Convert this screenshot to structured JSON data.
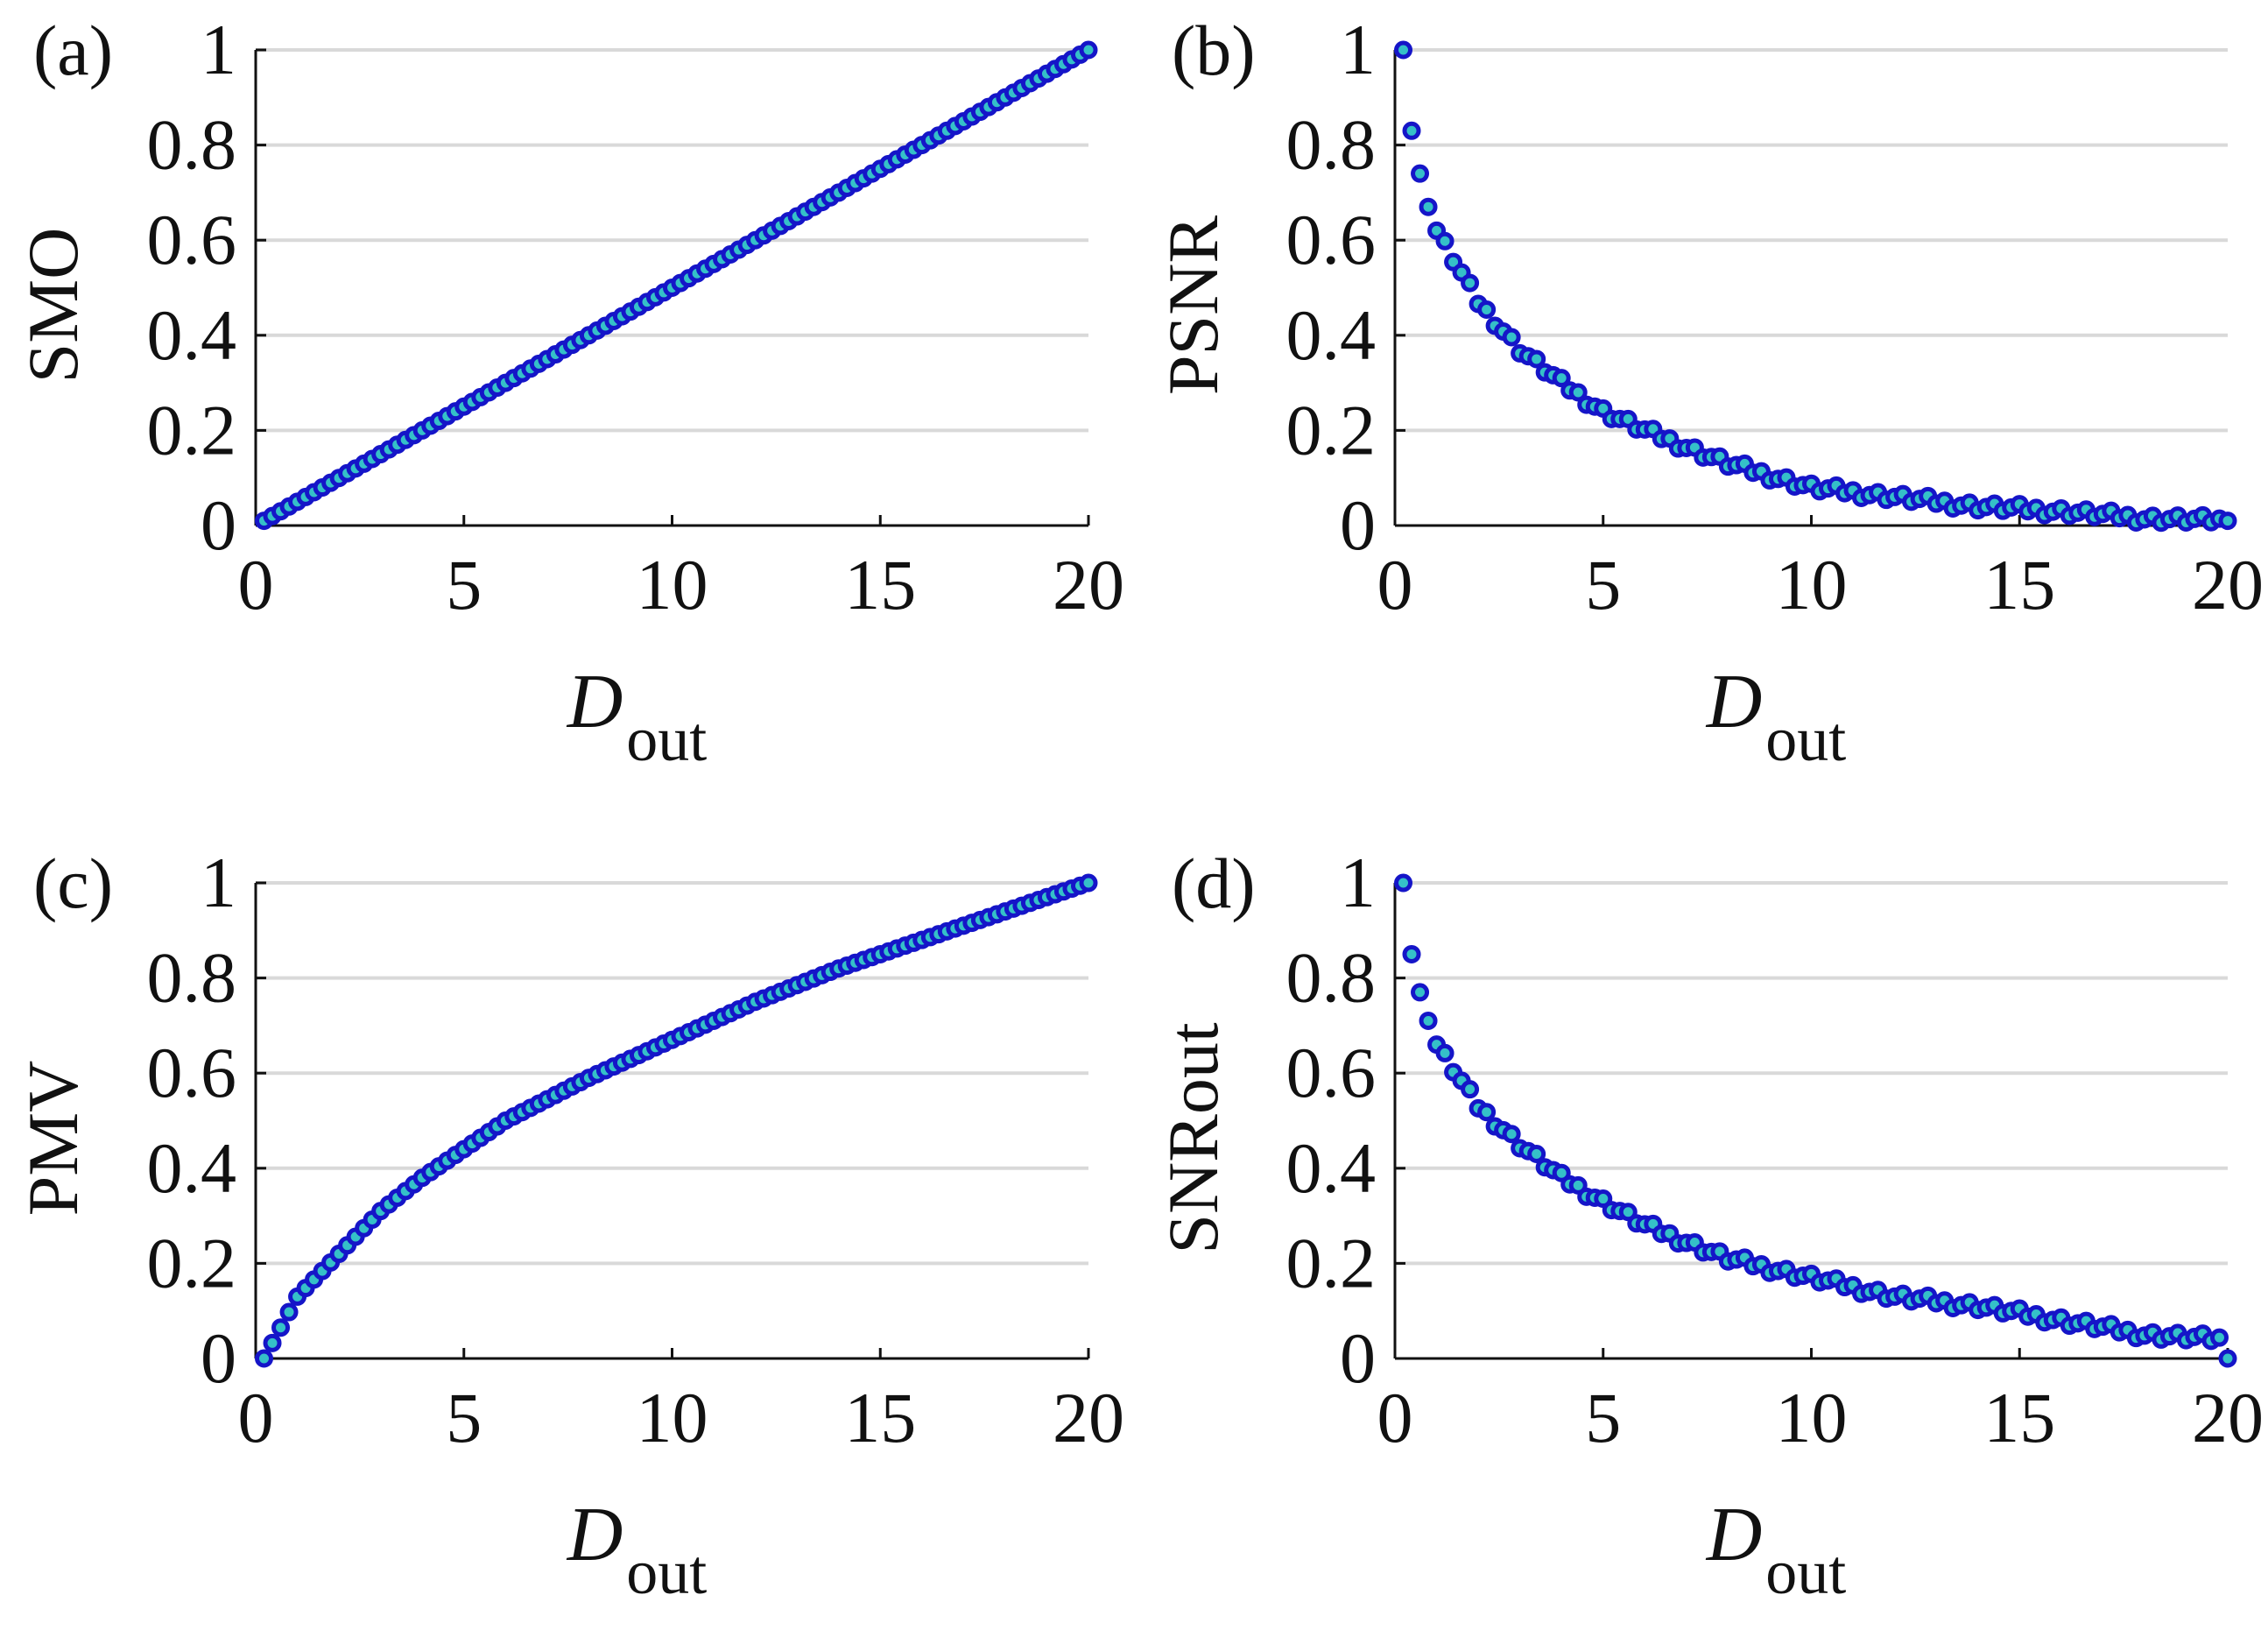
{
  "colors": {
    "marker_edge": "#1515c8",
    "marker_fill": "#35c0c8",
    "grid": "#d9d9d9",
    "axis": "#111111"
  },
  "chart_data": [
    {
      "panel_label": "(a)",
      "type": "scatter",
      "ylabel": "SMO",
      "xlabel": {
        "main": "D",
        "subscript": "out"
      },
      "xlim": [
        0,
        20
      ],
      "ylim": [
        0,
        1
      ],
      "xticks": [
        "0",
        "5",
        "10",
        "15",
        "20"
      ],
      "yticks": [
        "0",
        "0.2",
        "0.4",
        "0.6",
        "0.8",
        "1"
      ],
      "grid": "horizontal",
      "x": {
        "start": 0.2,
        "end": 20,
        "step": 0.2
      },
      "y": {
        "formula": "x / 20"
      },
      "n_points": 100
    },
    {
      "panel_label": "(b)",
      "type": "scatter",
      "ylabel": "PSNR",
      "xlabel": {
        "main": "D",
        "subscript": "out"
      },
      "xlim": [
        0,
        20
      ],
      "ylim": [
        0,
        1
      ],
      "xticks": [
        "0",
        "5",
        "10",
        "15",
        "20"
      ],
      "yticks": [
        "0",
        "0.2",
        "0.4",
        "0.6",
        "0.8",
        "1"
      ],
      "grid": "horizontal",
      "x": {
        "start": 0.2,
        "end": 20,
        "step": 0.2
      },
      "y": {
        "formula": "decaying curve from 1.0 at x=0.2 to about 0.01 at x=20, with small scatter"
      },
      "n_points": 100,
      "anchor_points": [
        [
          0.2,
          1.0
        ],
        [
          0.4,
          0.83
        ],
        [
          0.6,
          0.74
        ],
        [
          0.8,
          0.67
        ],
        [
          1.0,
          0.62
        ],
        [
          2.0,
          0.47
        ],
        [
          3.0,
          0.37
        ],
        [
          4.0,
          0.3
        ],
        [
          5.0,
          0.24
        ],
        [
          6.0,
          0.2
        ],
        [
          8.0,
          0.13
        ],
        [
          10.0,
          0.08
        ],
        [
          12.0,
          0.06
        ],
        [
          14.0,
          0.04
        ],
        [
          16.0,
          0.03
        ],
        [
          18.0,
          0.015
        ],
        [
          20.0,
          0.01
        ]
      ]
    },
    {
      "panel_label": "(c)",
      "type": "scatter",
      "ylabel": "PMV",
      "xlabel": {
        "main": "D",
        "subscript": "out"
      },
      "xlim": [
        0,
        20
      ],
      "ylim": [
        0,
        1
      ],
      "xticks": [
        "0",
        "5",
        "10",
        "15",
        "20"
      ],
      "yticks": [
        "0",
        "0.2",
        "0.4",
        "0.6",
        "0.8",
        "1"
      ],
      "grid": "horizontal",
      "x": {
        "start": 0.2,
        "end": 20,
        "step": 0.2
      },
      "y": {
        "formula": "rising concave curve from 0 at x=0.2 to 1.0 at x=20"
      },
      "n_points": 100,
      "anchor_points": [
        [
          0.2,
          0.0
        ],
        [
          1.0,
          0.13
        ],
        [
          2.0,
          0.22
        ],
        [
          3.0,
          0.31
        ],
        [
          4.0,
          0.38
        ],
        [
          5.0,
          0.44
        ],
        [
          6.0,
          0.5
        ],
        [
          8.0,
          0.59
        ],
        [
          10.0,
          0.67
        ],
        [
          12.0,
          0.75
        ],
        [
          14.0,
          0.82
        ],
        [
          16.0,
          0.88
        ],
        [
          18.0,
          0.94
        ],
        [
          20.0,
          1.0
        ]
      ]
    },
    {
      "panel_label": "(d)",
      "type": "scatter",
      "ylabel": "SNRout",
      "xlabel": {
        "main": "D",
        "subscript": "out"
      },
      "xlim": [
        0,
        20
      ],
      "ylim": [
        0,
        1
      ],
      "xticks": [
        "0",
        "5",
        "10",
        "15",
        "20"
      ],
      "yticks": [
        "0",
        "0.2",
        "0.4",
        "0.6",
        "0.8",
        "1"
      ],
      "grid": "horizontal",
      "x": {
        "start": 0.2,
        "end": 20,
        "step": 0.2
      },
      "y": {
        "formula": "decaying curve from 1.0 at x=0.2 to 0.0 at x=20, with small scatter"
      },
      "n_points": 100,
      "anchor_points": [
        [
          0.2,
          1.0
        ],
        [
          0.4,
          0.85
        ],
        [
          0.6,
          0.77
        ],
        [
          0.8,
          0.71
        ],
        [
          1.0,
          0.66
        ],
        [
          2.0,
          0.53
        ],
        [
          3.0,
          0.45
        ],
        [
          4.0,
          0.38
        ],
        [
          5.0,
          0.33
        ],
        [
          6.0,
          0.28
        ],
        [
          8.0,
          0.21
        ],
        [
          10.0,
          0.17
        ],
        [
          12.0,
          0.13
        ],
        [
          14.0,
          0.11
        ],
        [
          16.0,
          0.08
        ],
        [
          18.0,
          0.05
        ],
        [
          19.8,
          0.04
        ],
        [
          20.0,
          0.0
        ]
      ]
    }
  ]
}
